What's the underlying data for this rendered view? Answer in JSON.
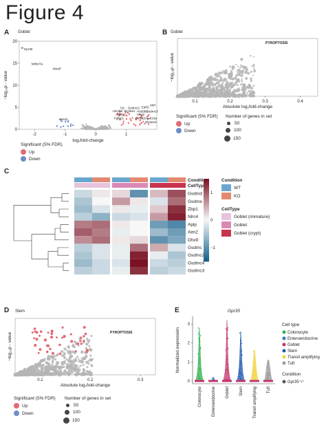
{
  "figure_title": "Figure 4",
  "panels": {
    "A": {
      "label": "A",
      "subtitle": "Goblet",
      "xlabel": "log₂fold-change",
      "ylabel": "−log₁₀p - value",
      "xticks": [
        "-2",
        "-1",
        "0",
        "1"
      ],
      "yticks": [
        "0",
        "5",
        "10",
        "15",
        "20"
      ],
      "gene_labels": [
        "Gpr35",
        "Mirlet7a",
        "Mmd²",
        "Ctc",
        "Gsdmc2",
        "Edrf2",
        "Mirf",
        "Akr1b8",
        "Slc25a1",
        "Hsd3b5",
        "Gsdmc3",
        "Akr1b7",
        "Hao2",
        "Fgfbp1",
        "Slc5a8",
        "Apol10a",
        "Slc6a14",
        "Mmd2"
      ],
      "legend": {
        "title": "Significant (5% FDR)",
        "up": "Up",
        "down": "Down"
      }
    },
    "B": {
      "label": "B",
      "subtitle": "Goblet",
      "xlabel": "Absolute log₂fold-change",
      "ylabel": "−log₁₀p - value",
      "xticks": [
        "0.1",
        "0.2",
        "0.3",
        "0.4"
      ],
      "annotation": "PYROPTOSIS",
      "legend": {
        "sig_title": "Significant (5% FDR)",
        "up": "Up",
        "down": "Down",
        "size_title": "Number of genes in set",
        "sizes": [
          "50",
          "100",
          "150"
        ]
      }
    },
    "C": {
      "label": "C",
      "genes": [
        "Gsdmd",
        "Gsdme",
        "Zbp1",
        "Nlrc4",
        "Apip",
        "Aim2",
        "Dhx9",
        "Gsdmc",
        "Gsdmc2",
        "Gsdmc4",
        "Gsdmc3"
      ],
      "row_annotations": [
        "Condition",
        "CellType"
      ],
      "legend_condition_title": "Condition",
      "legend_condition": [
        {
          "label": "WT",
          "color": "#6aa6cf"
        },
        {
          "label": "KO",
          "color": "#e28a70"
        }
      ],
      "legend_celltype_title": "CellType",
      "legend_celltype": [
        {
          "label": "Goblet (immature)",
          "color": "#e7c3dc"
        },
        {
          "label": "Goblet",
          "color": "#d98ab4"
        },
        {
          "label": "Goblet (crypt)",
          "color": "#c8334e"
        }
      ],
      "colorbar_ticks": [
        "1",
        "0",
        "−1"
      ]
    },
    "D": {
      "label": "D",
      "subtitle": "Stem",
      "xlabel": "Absolute log₂fold-change",
      "ylabel": "−log₁₀p - value",
      "xticks": [
        "0.1",
        "0.2",
        "0.3"
      ],
      "annotation": "PYROPTOSIS",
      "legend": {
        "sig_title": "Significant (5% FDR)",
        "up": "Up",
        "down": "Down",
        "size_title": "Number of genes in set",
        "sizes": [
          "50",
          "100",
          "150"
        ]
      }
    },
    "E": {
      "label": "E",
      "title": "Gpr35",
      "ylabel": "Normalized expression",
      "yticks": [
        "0",
        "1",
        "2",
        "3"
      ],
      "categories": [
        "Colonocyte",
        "Enteroendocrine",
        "Goblet",
        "Stem",
        "Transit amplifying",
        "Tuft"
      ],
      "legend_title": "Cell type",
      "legend_items": [
        {
          "label": "Colonocyte",
          "color": "#2fb24d"
        },
        {
          "label": "Enteroendocrine",
          "color": "#2b7bbd"
        },
        {
          "label": "Goblet",
          "color": "#c2366c"
        },
        {
          "label": "Stem",
          "color": "#2059b0"
        },
        {
          "label": "Transit amplifying",
          "color": "#f0d23c"
        },
        {
          "label": "Tuft",
          "color": "#9a9a9a"
        }
      ],
      "condition_title": "Condition",
      "condition_item": "Gpr35⁺/⁺"
    }
  },
  "colors": {
    "up": "#e06b74",
    "down": "#6f8cc8",
    "gray": "#b5b5b5"
  },
  "chart_data": [
    {
      "type": "scatter",
      "panel": "A",
      "x_range": [
        -2.5,
        2
      ],
      "y_range": [
        0,
        20
      ],
      "highlight": [
        {
          "label": "Gpr35",
          "x": -2.4,
          "y": 18.5
        },
        {
          "label": "Mmd2",
          "x": -0.9,
          "y": 1.8
        },
        {
          "label": "Gsdmc3",
          "x": 1.5,
          "y": 2.8
        }
      ]
    },
    {
      "type": "heatmap",
      "panel": "C",
      "rows": [
        "Gsdmd",
        "Gsdme",
        "Zbp1",
        "Nlrc4",
        "Apip",
        "Aim2",
        "Dhx9",
        "Gsdmc",
        "Gsdmc2",
        "Gsdmc4",
        "Gsdmc3"
      ],
      "columns": [
        "Goblet (immature) WT",
        "Goblet (immature) KO",
        "Goblet WT",
        "Goblet KO",
        "Goblet (crypt) WT",
        "Goblet (crypt) KO"
      ],
      "values": [
        [
          -0.3,
          0.1,
          0.2,
          -1.0,
          0.4,
          1.1
        ],
        [
          -0.5,
          0.0,
          0.6,
          0.1,
          -0.2,
          0.9
        ],
        [
          -0.6,
          -0.2,
          0.1,
          -0.1,
          0.3,
          1.3
        ],
        [
          -0.4,
          -0.7,
          -0.3,
          -0.2,
          0.6,
          1.4
        ],
        [
          0.8,
          0.9,
          0.1,
          0.0,
          -0.9,
          -1.1
        ],
        [
          1.0,
          0.8,
          -0.1,
          0.0,
          -0.6,
          -0.9
        ],
        [
          0.7,
          0.9,
          0.1,
          0.2,
          -1.0,
          -0.8
        ],
        [
          -0.4,
          -0.2,
          -0.1,
          0.9,
          0.5,
          -0.2
        ],
        [
          -0.5,
          -0.2,
          -0.1,
          1.4,
          -0.1,
          -0.5
        ],
        [
          -0.6,
          -0.3,
          -0.2,
          1.5,
          -0.3,
          -0.4
        ],
        [
          -0.4,
          -0.3,
          -0.1,
          1.3,
          -0.4,
          -0.3
        ]
      ]
    }
  ]
}
